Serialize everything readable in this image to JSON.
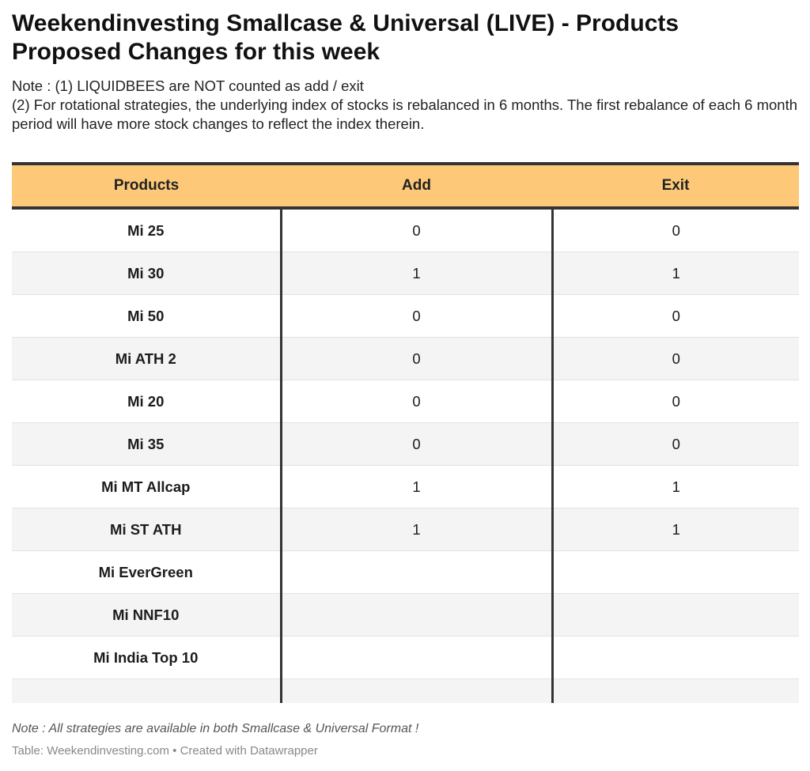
{
  "title": "Weekendinvesting Smallcase & Universal (LIVE) - Products Proposed Changes for this week",
  "notes": [
    "Note : (1) LIQUIDBEES are NOT counted as add / exit",
    "(2) For rotational strategies, the underlying index of stocks is rebalanced in 6 months. The first rebalance of each 6 month period will have more stock changes to reflect the index therein."
  ],
  "table": {
    "columns": [
      "Products",
      "Add",
      "Exit"
    ],
    "rows": [
      {
        "product": "Mi 25",
        "add": "0",
        "exit": "0"
      },
      {
        "product": "Mi 30",
        "add": "1",
        "exit": "1"
      },
      {
        "product": "Mi 50",
        "add": "0",
        "exit": "0"
      },
      {
        "product": "Mi ATH 2",
        "add": "0",
        "exit": "0"
      },
      {
        "product": "Mi 20",
        "add": "0",
        "exit": "0"
      },
      {
        "product": "Mi 35",
        "add": "0",
        "exit": "0"
      },
      {
        "product": "Mi MT Allcap",
        "add": "1",
        "exit": "1"
      },
      {
        "product": "Mi ST ATH",
        "add": "1",
        "exit": "1"
      },
      {
        "product": "Mi EverGreen",
        "add": "",
        "exit": ""
      },
      {
        "product": "Mi NNF10",
        "add": "",
        "exit": ""
      },
      {
        "product": "Mi India Top 10",
        "add": "",
        "exit": ""
      },
      {
        "product": "",
        "add": "",
        "exit": ""
      }
    ],
    "header_color": "#fdc979"
  },
  "footer_note": "Note : All strategies are available in both Smallcase & Universal Format !",
  "source": "Table: Weekendinvesting.com • Created with Datawrapper"
}
